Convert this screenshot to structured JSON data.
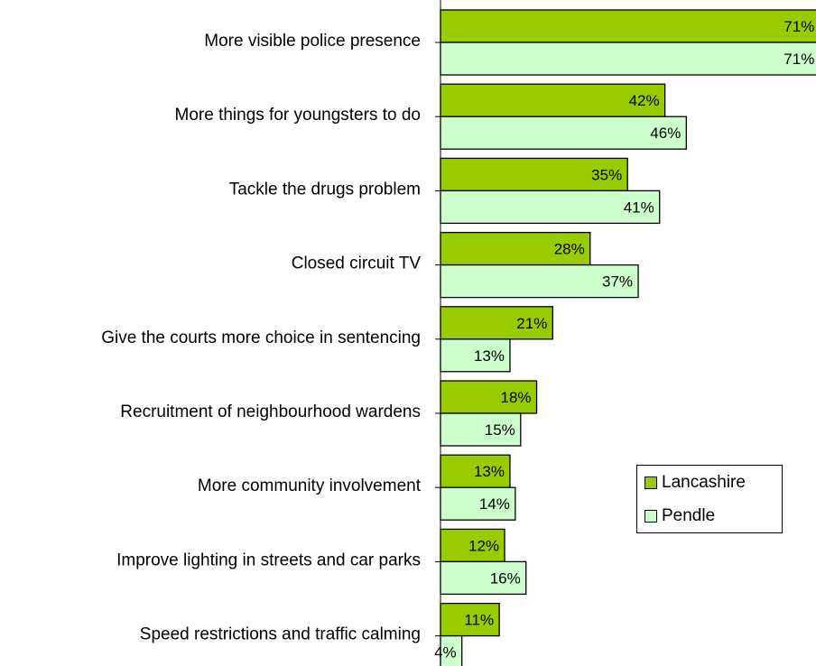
{
  "chart_data": {
    "type": "bar",
    "orientation": "horizontal",
    "categories": [
      "More visible police presence",
      "More things for youngsters to do",
      "Tackle the drugs problem",
      "Closed circuit TV",
      "Give the courts more choice in sentencing",
      "Recruitment of neighbourhood wardens",
      "More community involvement",
      "Improve lighting in streets and car parks",
      "Speed restrictions and traffic calming"
    ],
    "series": [
      {
        "name": "Lancashire",
        "color": "#99cc00",
        "values": [
          71,
          42,
          35,
          28,
          21,
          18,
          13,
          12,
          11
        ],
        "labels": [
          "71%",
          "42%",
          "35%",
          "28%",
          "21%",
          "18%",
          "13%",
          "12%",
          "11%"
        ]
      },
      {
        "name": "Pendle",
        "color": "#ccffcc",
        "values": [
          71,
          46,
          41,
          37,
          13,
          15,
          14,
          16,
          4
        ],
        "labels": [
          "71%",
          "46%",
          "41%",
          "37%",
          "13%",
          "15%",
          "14%",
          "16%",
          "4%"
        ]
      }
    ],
    "xlim": [
      0,
      70
    ],
    "legend_position": "right",
    "grid": false
  }
}
